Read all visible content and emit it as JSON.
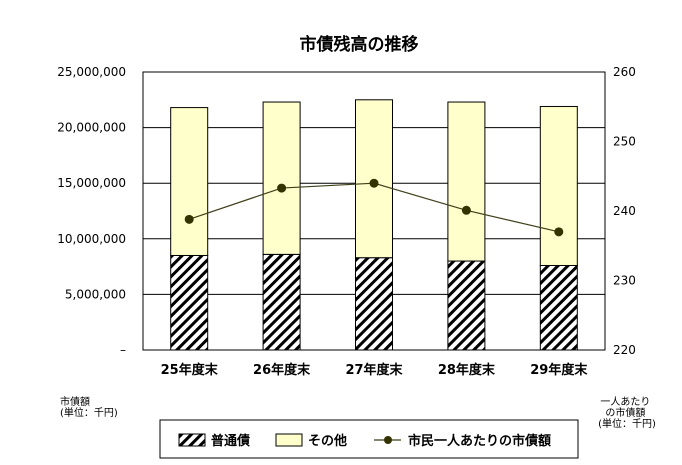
{
  "chart_data": {
    "type": "bar",
    "title": "市債残高の推移",
    "categories": [
      "25年度末",
      "26年度末",
      "27年度末",
      "28年度末",
      "29年度末"
    ],
    "series": [
      {
        "name": "普通債",
        "values": [
          8500000,
          8600000,
          8300000,
          8000000,
          7600000
        ]
      },
      {
        "name": "その他",
        "values": [
          13300000,
          13700000,
          14200000,
          14300000,
          14300000
        ]
      },
      {
        "name": "市民一人あたりの市債額",
        "type": "line",
        "axis": "right",
        "values": [
          238.8,
          243.3,
          244.0,
          240.1,
          237.0
        ]
      }
    ],
    "left_axis": {
      "label_lines": [
        "市債額",
        "(単位：千円)"
      ],
      "min": 0,
      "max": 25000000,
      "ticks": [
        "25,000,000",
        "20,000,000",
        "15,000,000",
        "10,000,000",
        "5,000,000",
        "–"
      ]
    },
    "right_axis": {
      "label_lines": [
        "一人あたり",
        "の市債額",
        "(単位：千円)"
      ],
      "min": 220,
      "max": 260,
      "ticks": [
        "260",
        "250",
        "240",
        "230",
        "220"
      ]
    },
    "grid": true,
    "legend_position": "bottom",
    "colors": {
      "stack_bottom": "hatched-black",
      "stack_top": "#ffffcc",
      "line": "#3f3f1a",
      "marker": "#333300"
    }
  }
}
